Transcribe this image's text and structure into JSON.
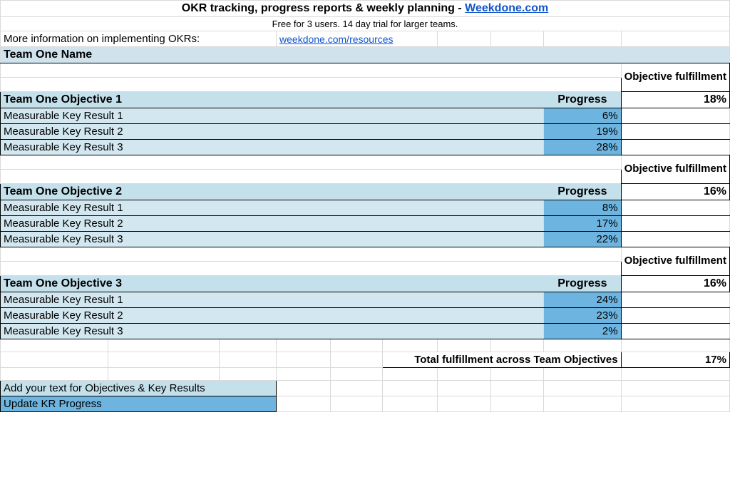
{
  "header": {
    "title_prefix": "OKR tracking, progress reports & weekly planning - ",
    "title_link_text": "Weekdone.com",
    "subtitle": "Free for 3 users. 14 day trial for larger teams.",
    "info_label": "More information on implementing OKRs:",
    "info_link_text": "weekdone.com/resources"
  },
  "team_name": "Team One Name",
  "labels": {
    "objective_fulfillment": "Objective fulfillment",
    "progress": "Progress",
    "total_label": "Total fulfillment across Team Objectives",
    "legend_objectives": "Add your text for Objectives & Key Results",
    "legend_progress": "Update KR Progress"
  },
  "objectives": [
    {
      "name": "Team One Objective 1",
      "fulfillment": "18%",
      "krs": [
        {
          "name": "Measurable Key Result 1",
          "value": "6%"
        },
        {
          "name": "Measurable Key Result 2",
          "value": "19%"
        },
        {
          "name": "Measurable Key Result 3",
          "value": "28%"
        }
      ]
    },
    {
      "name": "Team One Objective 2",
      "fulfillment": "16%",
      "krs": [
        {
          "name": "Measurable Key Result 1",
          "value": "8%"
        },
        {
          "name": "Measurable Key Result 2",
          "value": "17%"
        },
        {
          "name": "Measurable Key Result 3",
          "value": "22%"
        }
      ]
    },
    {
      "name": "Team One Objective 3",
      "fulfillment": "16%",
      "krs": [
        {
          "name": "Measurable Key Result 1",
          "value": "24%"
        },
        {
          "name": "Measurable Key Result 2",
          "value": "23%"
        },
        {
          "name": "Measurable Key Result 3",
          "value": "2%"
        }
      ]
    }
  ],
  "total_fulfillment": "17%",
  "colors": {
    "light_blue": "#d3e7f0",
    "mid_blue": "#c4e0eb",
    "dark_blue": "#6db5e0",
    "band_blue": "#d0e3ed",
    "link": "#1155cc",
    "grid": "#d9d9d9"
  }
}
